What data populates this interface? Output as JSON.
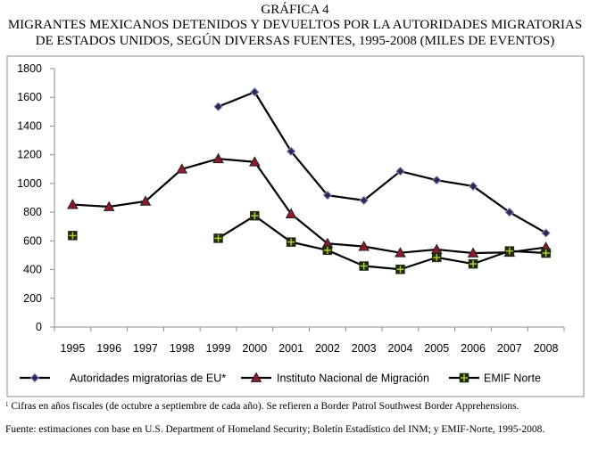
{
  "header": {
    "label": "GRÁFICA 4",
    "line1": "MIGRANTES MEXICANOS DETENIDOS Y DEVUELTOS POR LA AUTORIDADES MIGRATORIAS",
    "line2": "DE ESTADOS UNIDOS, SEGÚN DIVERSAS FUENTES, 1995-2008 (MILES DE EVENTOS)"
  },
  "chart_data": {
    "type": "line",
    "title": "MIGRANTES MEXICANOS DETENIDOS Y DEVUELTOS POR LA AUTORIDADES MIGRATORIAS DE ESTADOS UNIDOS, SEGÚN DIVERSAS FUENTES, 1995-2008 (MILES DE EVENTOS)",
    "categories": [
      "1995",
      "1996",
      "1997",
      "1998",
      "1999",
      "2000",
      "2001",
      "2002",
      "2003",
      "2004",
      "2005",
      "2006",
      "2007",
      "2008"
    ],
    "yticks": [
      "0",
      "200",
      "400",
      "600",
      "800",
      "1000",
      "1200",
      "1400",
      "1600",
      "1800"
    ],
    "ylim": [
      0,
      1800
    ],
    "xlabel": "",
    "ylabel": "",
    "grid": false,
    "legend_position": "bottom",
    "series": [
      {
        "name": "Autoridades migratorias de EU*",
        "marker": "diamond",
        "color": "#1f1f3f",
        "values": [
          null,
          null,
          null,
          null,
          1535,
          1637,
          1224,
          918,
          882,
          1085,
          1023,
          981,
          800,
          655
        ]
      },
      {
        "name": "Instituto Nacional de Migración",
        "marker": "triangle",
        "color": "#8b1a2b",
        "values": [
          853,
          838,
          876,
          1100,
          1172,
          1150,
          788,
          582,
          561,
          517,
          540,
          515,
          520,
          555
        ]
      },
      {
        "name": "EMIF Norte",
        "marker": "square",
        "color": "#2c3a14",
        "values": [
          637,
          null,
          null,
          null,
          618,
          775,
          592,
          535,
          425,
          402,
          485,
          440,
          530,
          515
        ]
      }
    ]
  },
  "footnotes": {
    "sup": "1",
    "note1": "Cifras en años fiscales (de octubre a septiembre de cada año). Se refieren a Border Patrol Southwest Border Apprehensions.",
    "note2": "Fuente: estimaciones con base en U.S. Department of Homeland Security; Boletín Estadístico del INM;  y EMIF-Norte, 1995-2008."
  }
}
